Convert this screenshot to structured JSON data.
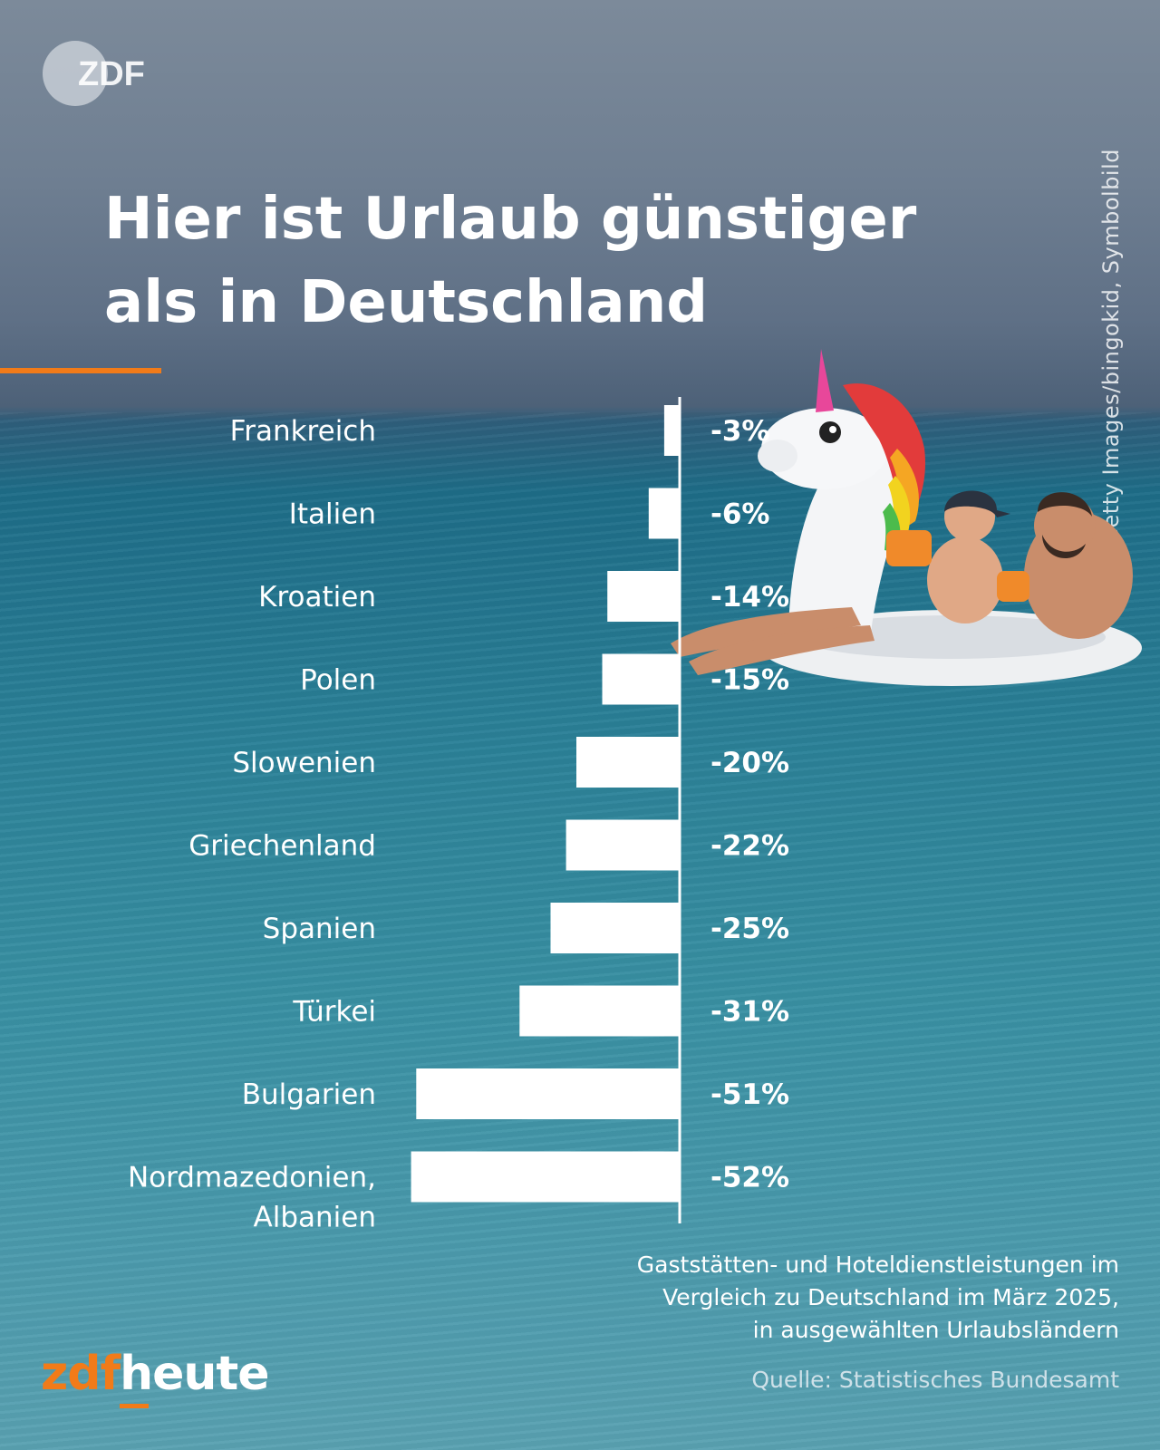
{
  "header": {
    "logo_text": "ZDF",
    "title_line1": "Hier ist Urlaub günstiger",
    "title_line2": "als in Deutschland"
  },
  "photo": {
    "credit": "Foto: Getty Images/bingokid, Symbolbild"
  },
  "chart_data": {
    "type": "bar",
    "orientation": "horizontal",
    "categories": [
      "Frankreich",
      "Italien",
      "Kroatien",
      "Polen",
      "Slowenien",
      "Griechenland",
      "Spanien",
      "Türkei",
      "Bulgarien",
      "Nordmazedonien, Albanien"
    ],
    "category_lines": [
      [
        "Frankreich"
      ],
      [
        "Italien"
      ],
      [
        "Kroatien"
      ],
      [
        "Polen"
      ],
      [
        "Slowenien"
      ],
      [
        "Griechenland"
      ],
      [
        "Spanien"
      ],
      [
        "Türkei"
      ],
      [
        "Bulgarien"
      ],
      [
        "Nordmazedonien,",
        "Albanien"
      ]
    ],
    "values": [
      -3,
      -6,
      -14,
      -15,
      -20,
      -22,
      -25,
      -31,
      -51,
      -52
    ],
    "value_labels": [
      "-3%",
      "-6%",
      "-14%",
      "-15%",
      "-20%",
      "-22%",
      "-25%",
      "-31%",
      "-51%",
      "-52%"
    ],
    "unit": "%",
    "xlim": [
      -52,
      0
    ],
    "grid": false,
    "legend": "none",
    "bar_color": "#ffffff"
  },
  "footer": {
    "caption_line1": "Gaststätten- und Hoteldienstleistungen im",
    "caption_line2": "Vergleich zu Deutschland im März 2025,",
    "caption_line3": "in ausgewählten Urlaubsländern",
    "source": "Quelle: Statistisches Bundesamt",
    "brand_part1": "zdf",
    "brand_part2": "heute"
  },
  "colors": {
    "accent": "#f17b19",
    "text": "#ffffff",
    "sea": "#2a8097"
  }
}
